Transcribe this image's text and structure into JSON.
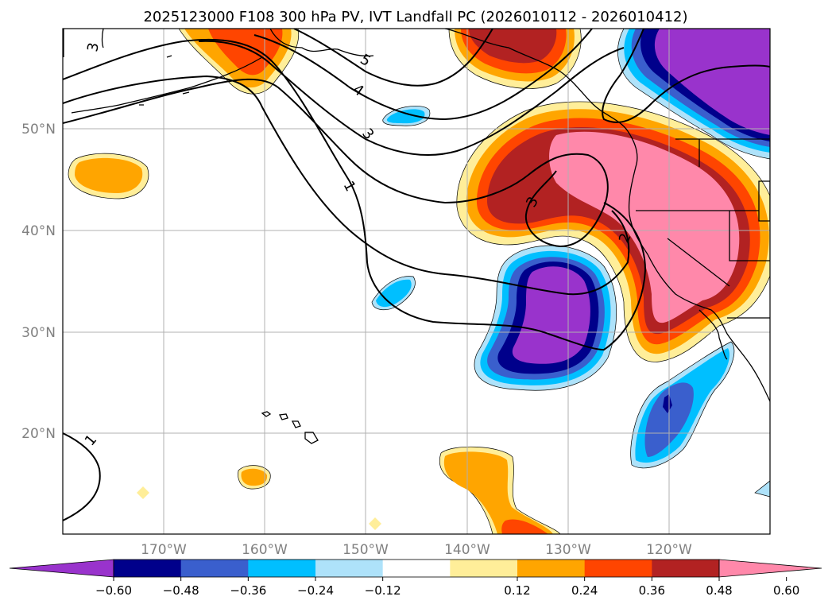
{
  "title": "2025123000 F108 300 hPa PV, IVT Landfall PC (2026010112 - 2026010412)",
  "map": {
    "lat_labels": [
      "50°N",
      "40°N",
      "30°N",
      "20°N"
    ],
    "lon_labels": [
      "170°W",
      "160°W",
      "150°W",
      "140°W",
      "130°W",
      "120°W"
    ],
    "contour_levels": [
      "1",
      "1",
      "2",
      "3",
      "3",
      "3",
      "4",
      "5"
    ]
  },
  "colorbar": {
    "ticks": [
      "−0.60",
      "−0.48",
      "−0.36",
      "−0.24",
      "−0.12",
      "0.12",
      "0.24",
      "0.36",
      "0.48",
      "0.60"
    ],
    "colors": [
      "#9933cc",
      "#00008b",
      "#3a5fcd",
      "#00bfff",
      "#aee2fa",
      "#ffffff",
      "#ffee99",
      "#ffa500",
      "#ff4500",
      "#b22222",
      "#ff88aa"
    ]
  },
  "colors": {
    "neg_strong": "#9933cc",
    "neg_navy": "#00008b",
    "neg_blue": "#3a5fcd",
    "neg_sky": "#00bfff",
    "neg_light": "#aee2fa",
    "pos_light": "#ffee99",
    "pos_orange": "#ffa500",
    "pos_red": "#ff4500",
    "pos_dark": "#b22222",
    "pos_pink": "#ff88aa"
  }
}
